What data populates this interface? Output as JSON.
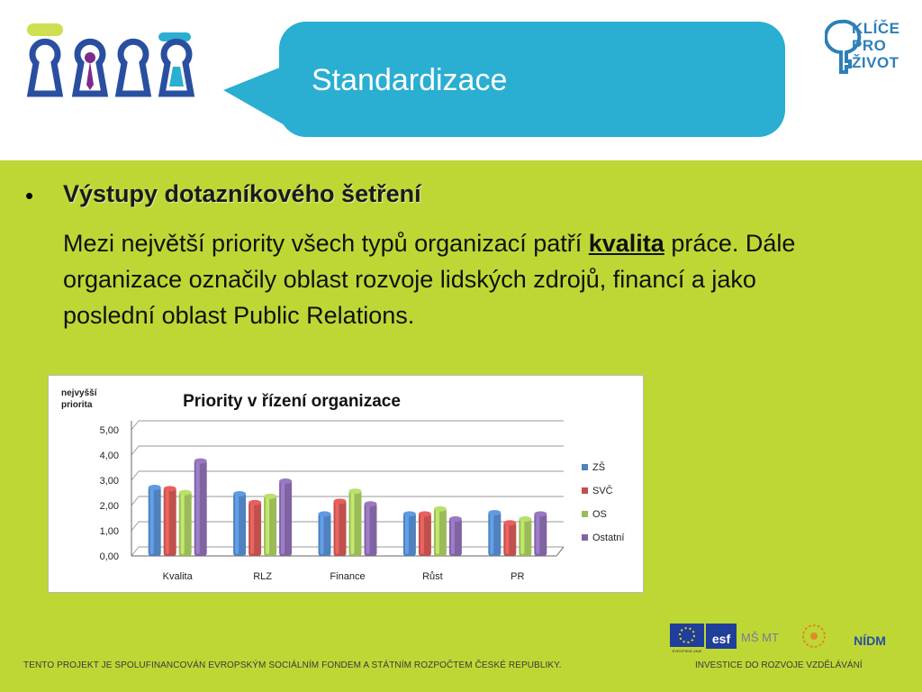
{
  "header": {
    "title": "Standardizace",
    "brand_lines": [
      "KLÍČE",
      "PRO",
      "ŽIVOT"
    ],
    "bubble_color": "#2aaed1",
    "logo_colors": [
      "#2a4fa0",
      "#cde052",
      "#2aaed1",
      "#7a2d8c"
    ]
  },
  "content": {
    "bullet": "•",
    "heading": "Výstupy dotazníkového šetření",
    "para_before": "Mezi největší priority všech typů organizací patří ",
    "para_keyword": "kvalita",
    "para_after": " práce. Dále organizace označily oblast rozvoje lidských zdrojů, financí a jako poslední oblast Public Relations.",
    "background_color": "#bed735"
  },
  "chart_data": {
    "type": "bar",
    "title": "Priority v řízení organizace",
    "ylabel_lines": [
      "nejvyšší",
      "priorita"
    ],
    "categories": [
      "Kvalita",
      "RLZ",
      "Finance",
      "Růst",
      "PR"
    ],
    "ylim": [
      0,
      5
    ],
    "yticks": [
      "0,00",
      "1,00",
      "2,00",
      "3,00",
      "4,00",
      "5,00"
    ],
    "grid": true,
    "legend_position": "right",
    "series": [
      {
        "name": "ZŠ",
        "color": "#4f81bd",
        "values": [
          2.75,
          2.5,
          1.7,
          1.7,
          1.75
        ]
      },
      {
        "name": "SVČ",
        "color": "#c0504d",
        "values": [
          2.7,
          2.15,
          2.2,
          1.7,
          1.35
        ]
      },
      {
        "name": "OS",
        "color": "#9bbb59",
        "values": [
          2.55,
          2.4,
          2.6,
          1.9,
          1.5
        ]
      },
      {
        "name": "Ostatní",
        "color": "#8064a2",
        "values": [
          3.8,
          3.0,
          2.1,
          1.5,
          1.7
        ]
      }
    ]
  },
  "footer": {
    "left_text": "TENTO PROJEKT JE SPOLUFINANCOVÁN EVROPSKÝM SOCIÁLNÍM FONDEM A STÁTNÍM ROZPOČTEM ČESKÉ REPUBLIKY.",
    "right_text": "INVESTICE DO ROZVOJE VZDĚLÁVÁNÍ",
    "logo_esf": "esf",
    "logo_eu_caption": "EVROPSKÁ UNIE",
    "logo_msmt": "MŠ MT",
    "logo_nidm": "NÍDM"
  }
}
